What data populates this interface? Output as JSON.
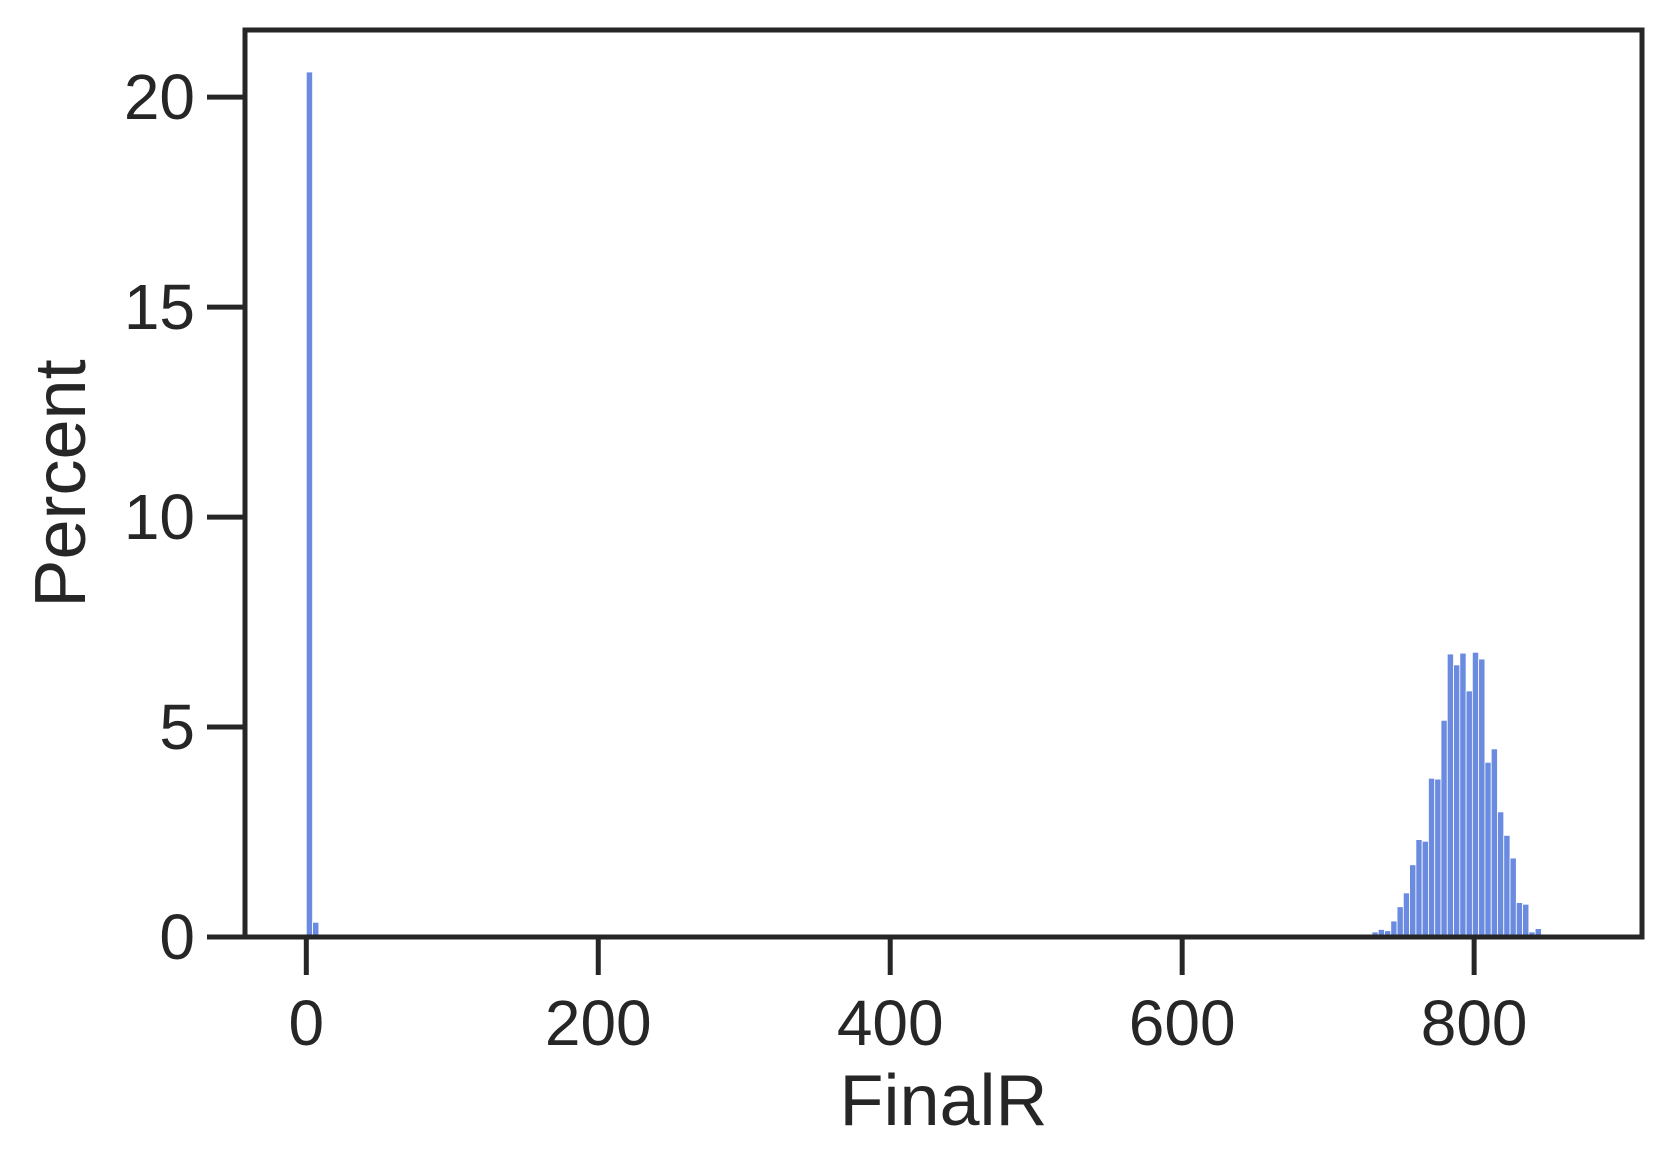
{
  "chart_data": {
    "type": "histogram",
    "xlabel": "FinalR",
    "ylabel": "Percent",
    "xlim": [
      -42,
      915
    ],
    "ylim": [
      0,
      21.6
    ],
    "xticks": [
      0,
      200,
      400,
      600,
      800
    ],
    "yticks": [
      0,
      5,
      10,
      15,
      20
    ],
    "xtick_labels": [
      "0",
      "200",
      "400",
      "600",
      "800"
    ],
    "ytick_labels": [
      "0",
      "5",
      "10",
      "15",
      "20"
    ],
    "grid": false,
    "legend": "none",
    "bar_color": "#6a8be0",
    "bin_width": 4.3,
    "bins": [
      {
        "x": 0,
        "value": 20.6
      },
      {
        "x": 4.3,
        "value": 0.35
      },
      {
        "x": 730,
        "value": 0.12
      },
      {
        "x": 734.3,
        "value": 0.18
      },
      {
        "x": 738.6,
        "value": 0.15
      },
      {
        "x": 742.9,
        "value": 0.38
      },
      {
        "x": 747.2,
        "value": 0.72
      },
      {
        "x": 751.5,
        "value": 1.05
      },
      {
        "x": 755.8,
        "value": 1.72
      },
      {
        "x": 760.1,
        "value": 2.32
      },
      {
        "x": 764.4,
        "value": 2.28
      },
      {
        "x": 768.7,
        "value": 3.78
      },
      {
        "x": 773.0,
        "value": 3.76
      },
      {
        "x": 777.3,
        "value": 5.16
      },
      {
        "x": 781.6,
        "value": 6.74
      },
      {
        "x": 785.9,
        "value": 6.48
      },
      {
        "x": 790.2,
        "value": 6.76
      },
      {
        "x": 794.5,
        "value": 5.86
      },
      {
        "x": 798.8,
        "value": 6.78
      },
      {
        "x": 803.1,
        "value": 6.62
      },
      {
        "x": 807.4,
        "value": 4.16
      },
      {
        "x": 811.7,
        "value": 4.48
      },
      {
        "x": 816.0,
        "value": 2.98
      },
      {
        "x": 820.3,
        "value": 2.42
      },
      {
        "x": 824.6,
        "value": 1.88
      },
      {
        "x": 828.9,
        "value": 0.82
      },
      {
        "x": 833.2,
        "value": 0.78
      },
      {
        "x": 837.5,
        "value": 0.12
      },
      {
        "x": 841.8,
        "value": 0.2
      }
    ]
  },
  "colors": {
    "axis": "#262626",
    "bar": "#6a8be0",
    "bar_edge": "#ffffff",
    "background": "#ffffff"
  }
}
